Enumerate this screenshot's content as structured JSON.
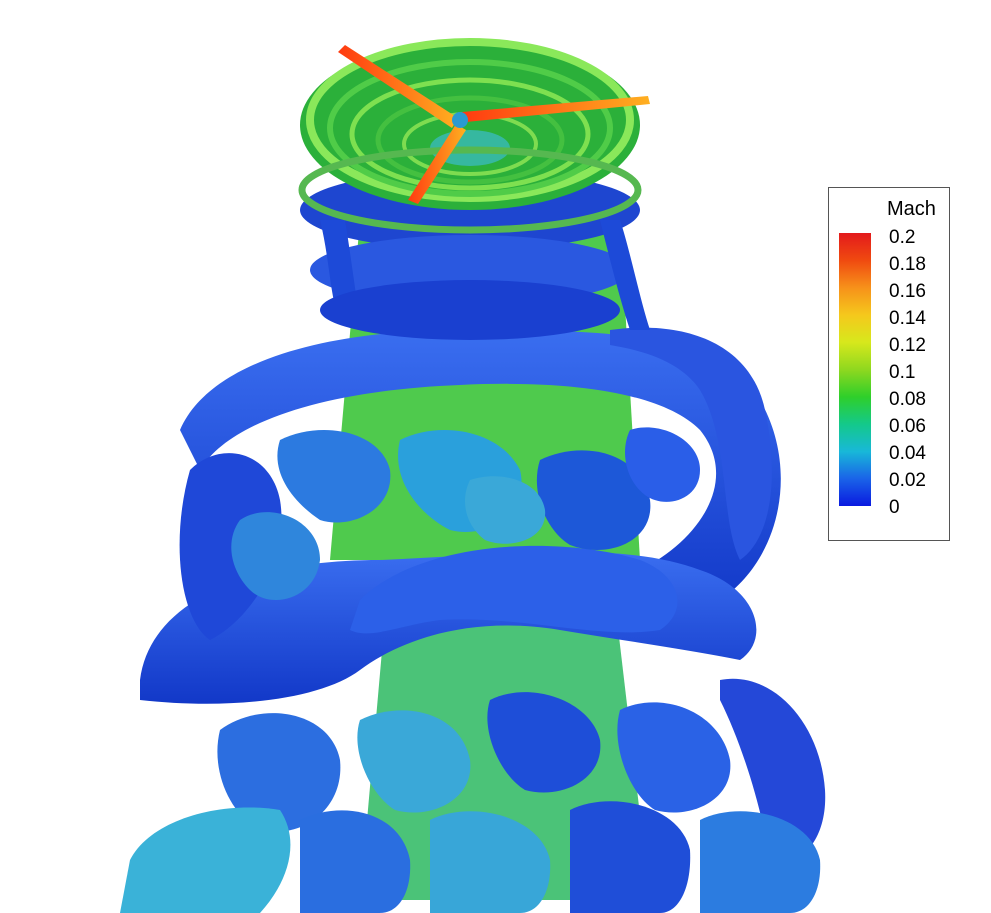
{
  "legend": {
    "title": "Mach",
    "ticks": [
      "0.2",
      "0.18",
      "0.16",
      "0.14",
      "0.12",
      "0.1",
      "0.08",
      "0.06",
      "0.04",
      "0.02",
      "0"
    ],
    "colors": [
      "#e31a1c",
      "#f04a10",
      "#f7911a",
      "#f5c81c",
      "#d7e81c",
      "#8fd81f",
      "#2fcf2a",
      "#14c98a",
      "#18b8d8",
      "#1a63e8",
      "#0a1ae0"
    ]
  }
}
